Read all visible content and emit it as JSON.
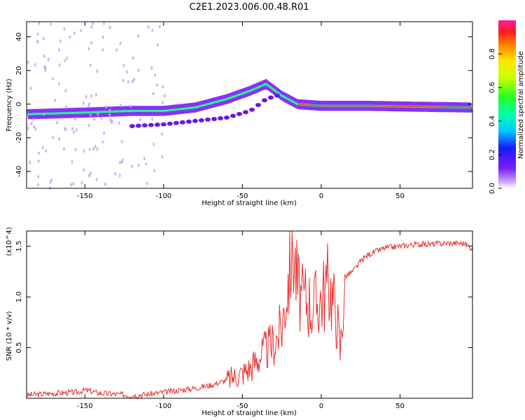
{
  "title": "C2E1.2023.006.00.48.R01",
  "colors": {
    "snr_line": "#e8302f",
    "background_band": "#7a1cf5",
    "axis": "#000000"
  },
  "chart_data": [
    {
      "type": "heatmap",
      "xlabel": "Height of straight line (km)",
      "ylabel": "Frequency (Hz)",
      "xlim": [
        -187,
        96
      ],
      "ylim": [
        -50,
        49
      ],
      "xticks": [
        -150,
        -100,
        -50,
        0,
        50
      ],
      "yticks": [
        -40,
        -20,
        0,
        20,
        40
      ],
      "colorbar": {
        "label": "Normalized spectral amplitude",
        "range": [
          0,
          1
        ],
        "ticks": [
          0.0,
          0.2,
          0.4,
          0.6,
          0.8
        ]
      },
      "ridges": [
        {
          "x": [
            -187,
            -150,
            -120,
            -100,
            -80,
            -60,
            -45,
            -35,
            -25,
            -15,
            0,
            30,
            60,
            96
          ],
          "y": [
            -6,
            -5,
            -4,
            -4,
            -2,
            3,
            8,
            12,
            5,
            0,
            -1,
            -1,
            -1.5,
            -2
          ]
        },
        {
          "x": [
            -120,
            -100,
            -80,
            -60,
            -45,
            -35,
            -25
          ],
          "y": [
            -13,
            -12,
            -10,
            -8,
            -4,
            3,
            6
          ]
        }
      ]
    },
    {
      "type": "line",
      "xlabel": "Height of straight line (km)",
      "ylabel": "SNR (10 * v/v)",
      "yscale_label": "(x10^4)",
      "xlim": [
        -187,
        96
      ],
      "ylim": [
        0,
        1.65
      ],
      "xticks": [
        -150,
        -100,
        -50,
        0,
        50
      ],
      "yticks": [
        0.5,
        1.0,
        1.5
      ],
      "x": [
        -187,
        -170,
        -155,
        -150,
        -140,
        -120,
        -110,
        -100,
        -90,
        -80,
        -70,
        -60,
        -50,
        -45,
        -40,
        -35,
        -30,
        -25,
        -20,
        -18,
        -15,
        -12,
        -10,
        -5,
        0,
        5,
        10,
        12,
        15,
        20,
        25,
        30,
        40,
        50,
        60,
        70,
        80,
        90,
        96
      ],
      "y": [
        0.03,
        0.05,
        0.06,
        0.08,
        0.05,
        0.03,
        0.04,
        0.06,
        0.08,
        0.1,
        0.13,
        0.18,
        0.25,
        0.3,
        0.4,
        0.48,
        0.55,
        0.7,
        1.3,
        1.55,
        1.1,
        0.95,
        1.0,
        0.9,
        1.0,
        1.15,
        0.8,
        0.45,
        1.2,
        1.25,
        1.35,
        1.42,
        1.48,
        1.5,
        1.52,
        1.52,
        1.53,
        1.53,
        1.48
      ]
    }
  ]
}
